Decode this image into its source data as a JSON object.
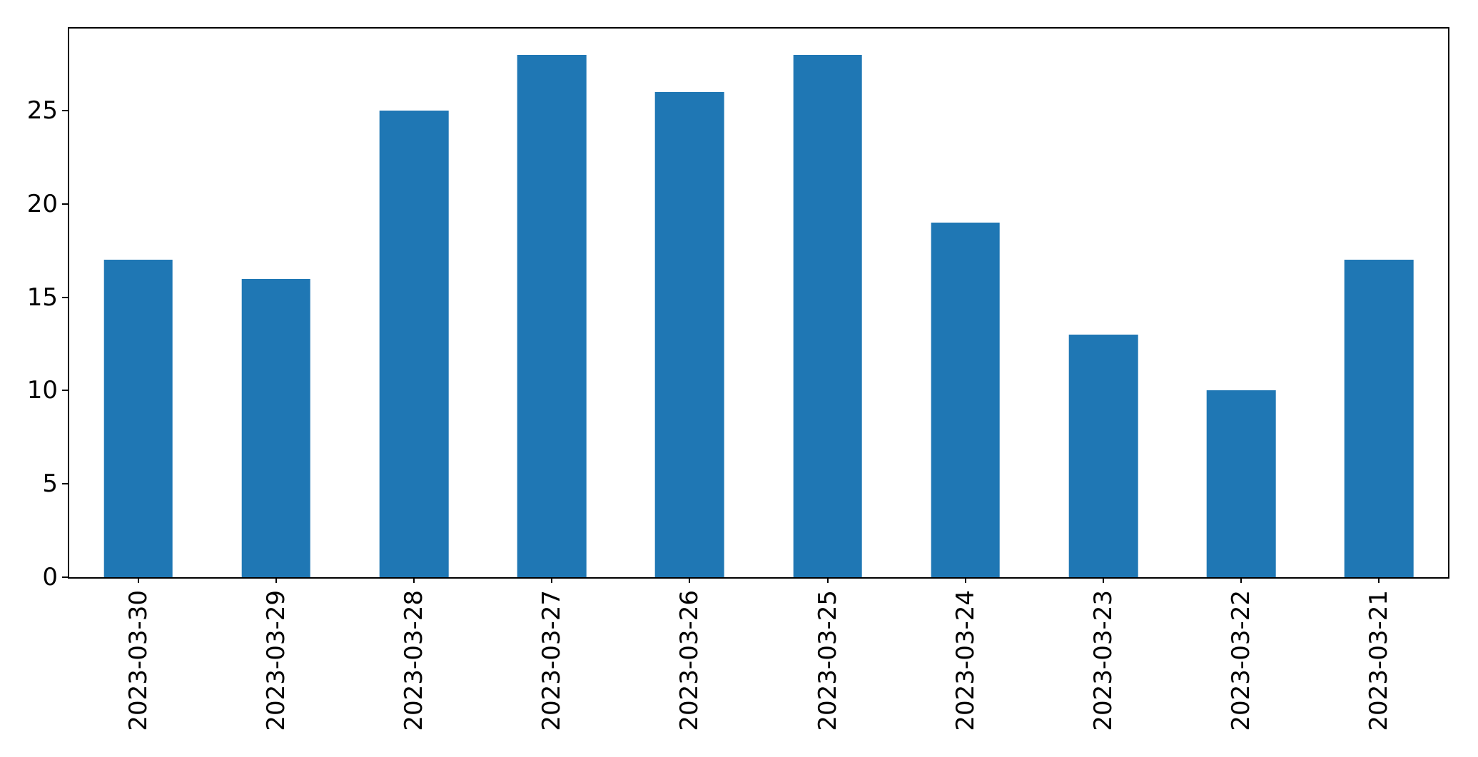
{
  "chart_data": {
    "type": "bar",
    "categories": [
      "2023-03-30",
      "2023-03-29",
      "2023-03-28",
      "2023-03-27",
      "2023-03-26",
      "2023-03-25",
      "2023-03-24",
      "2023-03-23",
      "2023-03-22",
      "2023-03-21"
    ],
    "values": [
      17,
      16,
      25,
      28,
      26,
      28,
      19,
      13,
      10,
      17
    ],
    "title": "",
    "xlabel": "",
    "ylabel": "",
    "ylim": [
      0,
      29.4
    ],
    "yticks": [
      0,
      5,
      10,
      15,
      20,
      25
    ],
    "xtick_rotation_deg": 90,
    "bar_width_fraction": 0.5,
    "grid": false,
    "legend": null,
    "colors": {
      "bar": "#1f77b4",
      "spine": "#000000",
      "text": "#000000",
      "background": "#ffffff"
    }
  }
}
